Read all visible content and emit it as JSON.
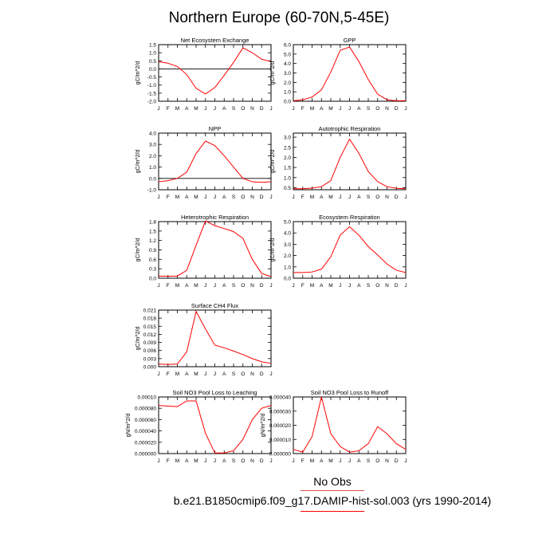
{
  "page": {
    "title": "Northern Europe (60-70N,5-45E)"
  },
  "legend": {
    "obs_label": "No Obs",
    "case_label": "b.e21.B1850cmip6.f09_g17.DAMIP-hist-sol.003 (yrs 1990-2014)"
  },
  "colors": {
    "model_line": "#ff0000",
    "obs_line": "#e74c4c"
  },
  "chart_data": [
    {
      "type": "line",
      "title": "Net Ecosystem Exchange",
      "ylabel": "gC/m^2/d",
      "categories": [
        "J",
        "F",
        "M",
        "A",
        "M",
        "J",
        "J",
        "A",
        "S",
        "O",
        "N",
        "D",
        "J"
      ],
      "ylim": [
        -2.0,
        1.5
      ],
      "yticks": [
        -2.0,
        -1.5,
        -1.0,
        -0.5,
        0.0,
        0.5,
        1.0,
        1.5
      ],
      "ytick_labels": [
        "-2.0",
        "-1.5",
        "-1.0",
        "-0.5",
        "0.0",
        "0.5",
        "1.0",
        "1.5"
      ],
      "zero_line": true,
      "series": [
        {
          "values": [
            0.45,
            0.35,
            0.15,
            -0.35,
            -1.2,
            -1.55,
            -1.15,
            -0.4,
            0.4,
            1.3,
            1.0,
            0.6,
            0.45
          ]
        }
      ]
    },
    {
      "type": "line",
      "title": "GPP",
      "ylabel": "gC/m^2/d",
      "categories": [
        "J",
        "F",
        "M",
        "A",
        "M",
        "J",
        "J",
        "A",
        "S",
        "O",
        "N",
        "D",
        "J"
      ],
      "ylim": [
        0.0,
        6.0
      ],
      "yticks": [
        0.0,
        1.0,
        2.0,
        3.0,
        4.0,
        5.0,
        6.0
      ],
      "ytick_labels": [
        "0.0",
        "1.0",
        "2.0",
        "3.0",
        "4.0",
        "5.0",
        "6.0"
      ],
      "zero_line": false,
      "series": [
        {
          "values": [
            0.05,
            0.15,
            0.45,
            1.2,
            3.1,
            5.4,
            5.75,
            4.2,
            2.3,
            0.75,
            0.15,
            0.05,
            0.05
          ]
        }
      ]
    },
    {
      "type": "line",
      "title": "NPP",
      "ylabel": "gC/m^2/d",
      "categories": [
        "J",
        "F",
        "M",
        "A",
        "M",
        "J",
        "J",
        "A",
        "S",
        "O",
        "N",
        "D",
        "J"
      ],
      "ylim": [
        -1.0,
        4.0
      ],
      "yticks": [
        -1.0,
        0.0,
        1.0,
        2.0,
        3.0,
        4.0
      ],
      "ytick_labels": [
        "-1.0",
        "0.0",
        "1.0",
        "2.0",
        "3.0",
        "4.0"
      ],
      "zero_line": true,
      "series": [
        {
          "values": [
            -0.3,
            -0.2,
            0.0,
            0.55,
            2.2,
            3.3,
            2.9,
            2.0,
            1.0,
            0.0,
            -0.3,
            -0.35,
            -0.3
          ]
        }
      ]
    },
    {
      "type": "line",
      "title": "Autotrophic Respiration",
      "ylabel": "gC/m^2/d",
      "categories": [
        "J",
        "F",
        "M",
        "A",
        "M",
        "J",
        "J",
        "A",
        "S",
        "O",
        "N",
        "D",
        "J"
      ],
      "ylim": [
        0.4,
        3.2
      ],
      "yticks": [
        0.5,
        1.0,
        1.5,
        2.0,
        2.5,
        3.0
      ],
      "ytick_labels": [
        "0.5",
        "1.0",
        "1.5",
        "2.0",
        "2.5",
        "3.0"
      ],
      "zero_line": false,
      "series": [
        {
          "values": [
            0.45,
            0.45,
            0.48,
            0.55,
            0.85,
            2.0,
            2.9,
            2.2,
            1.3,
            0.8,
            0.55,
            0.47,
            0.45
          ]
        }
      ]
    },
    {
      "type": "line",
      "title": "Heterotrophic Respiration",
      "ylabel": "gC/m^2/d",
      "categories": [
        "J",
        "F",
        "M",
        "A",
        "M",
        "J",
        "J",
        "A",
        "S",
        "O",
        "N",
        "D",
        "J"
      ],
      "ylim": [
        0.0,
        1.8
      ],
      "yticks": [
        0.0,
        0.3,
        0.6,
        0.9,
        1.2,
        1.5,
        1.8
      ],
      "ytick_labels": [
        "0.0",
        "0.3",
        "0.6",
        "0.9",
        "1.2",
        "1.5",
        "1.8"
      ],
      "zero_line": false,
      "series": [
        {
          "values": [
            0.07,
            0.06,
            0.07,
            0.25,
            1.05,
            1.82,
            1.67,
            1.58,
            1.48,
            1.27,
            0.6,
            0.15,
            0.05
          ]
        }
      ]
    },
    {
      "type": "line",
      "title": "Ecosystem Respiration",
      "ylabel": "gC/m^2/d",
      "categories": [
        "J",
        "F",
        "M",
        "A",
        "M",
        "J",
        "J",
        "A",
        "S",
        "O",
        "N",
        "D",
        "J"
      ],
      "ylim": [
        0.0,
        5.0
      ],
      "yticks": [
        0.0,
        1.0,
        2.0,
        3.0,
        4.0,
        5.0
      ],
      "ytick_labels": [
        "0.0",
        "1.0",
        "2.0",
        "3.0",
        "4.0",
        "5.0"
      ],
      "zero_line": false,
      "series": [
        {
          "values": [
            0.5,
            0.5,
            0.55,
            0.8,
            1.9,
            3.8,
            4.55,
            3.8,
            2.8,
            2.05,
            1.25,
            0.7,
            0.5
          ]
        }
      ]
    },
    {
      "type": "line",
      "title": "Surface CH4 Flux",
      "ylabel": "gC/m^2/d",
      "categories": [
        "J",
        "F",
        "M",
        "A",
        "M",
        "J",
        "J",
        "A",
        "S",
        "O",
        "N",
        "D",
        "J"
      ],
      "ylim": [
        0.0,
        0.021
      ],
      "yticks": [
        0.0,
        0.003,
        0.006,
        0.009,
        0.012,
        0.015,
        0.018,
        0.021
      ],
      "ytick_labels": [
        "0.000",
        "0.003",
        "0.006",
        "0.009",
        "0.012",
        "0.015",
        "0.018",
        "0.021"
      ],
      "zero_line": false,
      "series": [
        {
          "values": [
            0.001,
            0.0008,
            0.001,
            0.0055,
            0.0205,
            0.014,
            0.008,
            0.007,
            0.0058,
            0.0045,
            0.003,
            0.0018,
            0.0012
          ]
        }
      ]
    },
    {
      "type": "line",
      "title": "Soil NO3 Pool Loss to Leaching",
      "ylabel": "gN/m^2/d",
      "categories": [
        "J",
        "F",
        "M",
        "A",
        "M",
        "J",
        "J",
        "A",
        "S",
        "O",
        "N",
        "D",
        "J"
      ],
      "ylim": [
        0.0,
        0.0001
      ],
      "yticks": [
        0.0,
        2e-05,
        4e-05,
        6e-05,
        8e-05,
        0.0001
      ],
      "ytick_labels": [
        "0.000000",
        "0.000020",
        "0.000040",
        "0.000060",
        "0.000080",
        "0.00010"
      ],
      "zero_line": false,
      "series": [
        {
          "values": [
            8.5e-05,
            8.4e-05,
            8.3e-05,
            9.3e-05,
            9.3e-05,
            3.6e-05,
            1e-06,
            1e-06,
            5e-06,
            2.5e-05,
            6e-05,
            8e-05,
            8.5e-05
          ]
        }
      ]
    },
    {
      "type": "line",
      "title": "Soil NO3 Pool Loss to Runoff",
      "ylabel": "gN/m^2/d",
      "categories": [
        "J",
        "F",
        "M",
        "A",
        "M",
        "J",
        "J",
        "A",
        "S",
        "O",
        "N",
        "D",
        "J"
      ],
      "ylim": [
        0.0,
        4e-05
      ],
      "yticks": [
        0.0,
        1e-05,
        2e-05,
        3e-05,
        4e-05
      ],
      "ytick_labels": [
        "0.000000",
        "0.000010",
        "0.000020",
        "0.000030",
        "0.000040"
      ],
      "zero_line": false,
      "series": [
        {
          "values": [
            3e-06,
            1e-06,
            1.2e-05,
            4e-05,
            1.4e-05,
            5e-06,
            1e-06,
            2e-06,
            7e-06,
            1.9e-05,
            1.4e-05,
            7e-06,
            3e-06
          ]
        }
      ]
    }
  ]
}
